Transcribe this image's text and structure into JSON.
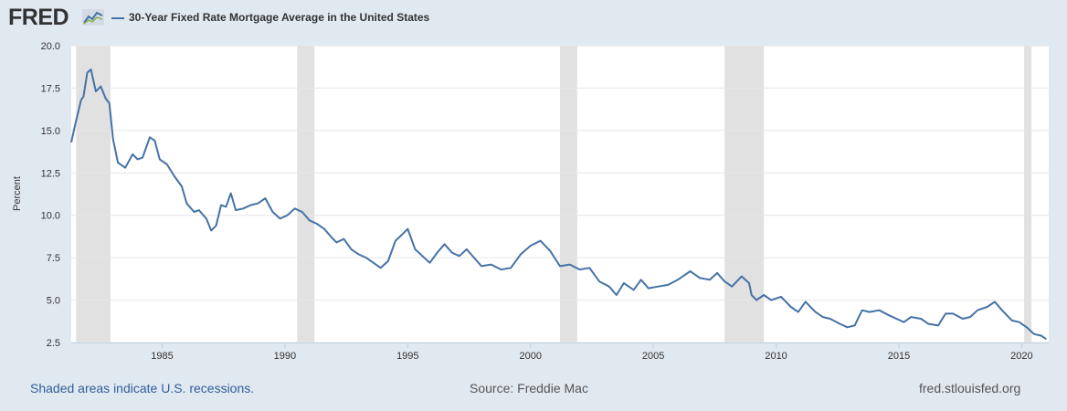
{
  "header": {
    "logo_text": "FRED",
    "logo_icon": "line-chart-icon"
  },
  "colors": {
    "background": "#e1e9f0",
    "plot_background": "#ffffff",
    "series": "#4572a7",
    "recession": "#e1e1e1",
    "grid": "#e6e6e6",
    "link": "#2f5d9b"
  },
  "chart_data": {
    "type": "line",
    "title": "30-Year Fixed Rate Mortgage Average in the United States",
    "xlabel": "",
    "ylabel": "Percent",
    "xlim": [
      1981.3,
      2021.1
    ],
    "ylim": [
      2.5,
      20.0
    ],
    "yticks": [
      2.5,
      5.0,
      7.5,
      10.0,
      12.5,
      15.0,
      17.5,
      20.0
    ],
    "ytick_labels": [
      "2.5",
      "5.0",
      "7.5",
      "10.0",
      "12.5",
      "15.0",
      "17.5",
      "20.0"
    ],
    "xticks": [
      1985,
      1990,
      1995,
      2000,
      2005,
      2010,
      2015,
      2020
    ],
    "xtick_labels": [
      "1985",
      "1990",
      "1995",
      "2000",
      "2005",
      "2010",
      "2015",
      "2020"
    ],
    "grid": true,
    "legend": "top-left",
    "recessions": [
      {
        "start": 1981.5,
        "end": 1982.9
      },
      {
        "start": 1990.5,
        "end": 1991.2
      },
      {
        "start": 2001.2,
        "end": 2001.9
      },
      {
        "start": 2007.9,
        "end": 2009.5
      },
      {
        "start": 2020.1,
        "end": 2020.4
      }
    ],
    "series": [
      {
        "name": "30-Year Fixed Rate Mortgage Average in the United States",
        "x": [
          1981.3,
          1981.5,
          1981.7,
          1981.8,
          1981.95,
          1982.1,
          1982.3,
          1982.5,
          1982.7,
          1982.85,
          1983.0,
          1983.2,
          1983.5,
          1983.8,
          1984.0,
          1984.2,
          1984.5,
          1984.7,
          1984.9,
          1985.2,
          1985.5,
          1985.8,
          1986.0,
          1986.3,
          1986.5,
          1986.8,
          1987.0,
          1987.2,
          1987.4,
          1987.6,
          1987.8,
          1988.0,
          1988.3,
          1988.6,
          1988.9,
          1989.2,
          1989.5,
          1989.8,
          1990.1,
          1990.4,
          1990.7,
          1991.0,
          1991.3,
          1991.6,
          1991.9,
          1992.1,
          1992.4,
          1992.7,
          1993.0,
          1993.3,
          1993.6,
          1993.9,
          1994.2,
          1994.5,
          1994.8,
          1995.0,
          1995.3,
          1995.6,
          1995.9,
          1996.2,
          1996.5,
          1996.8,
          1997.1,
          1997.4,
          1997.7,
          1998.0,
          1998.4,
          1998.8,
          1999.2,
          1999.6,
          2000.0,
          2000.4,
          2000.8,
          2001.2,
          2001.6,
          2002.0,
          2002.4,
          2002.8,
          2003.2,
          2003.5,
          2003.8,
          2004.2,
          2004.5,
          2004.8,
          2005.2,
          2005.6,
          2006.0,
          2006.5,
          2006.9,
          2007.3,
          2007.6,
          2007.9,
          2008.2,
          2008.6,
          2008.9,
          2009.0,
          2009.2,
          2009.5,
          2009.8,
          2010.2,
          2010.6,
          2010.9,
          2011.2,
          2011.6,
          2011.9,
          2012.2,
          2012.6,
          2012.9,
          2013.2,
          2013.5,
          2013.8,
          2014.2,
          2014.6,
          2014.9,
          2015.2,
          2015.5,
          2015.9,
          2016.2,
          2016.6,
          2016.9,
          2017.2,
          2017.6,
          2017.9,
          2018.2,
          2018.6,
          2018.9,
          2019.2,
          2019.6,
          2019.9,
          2020.2,
          2020.5,
          2020.8,
          2021.0
        ],
        "values": [
          14.3,
          15.6,
          16.8,
          17.0,
          18.4,
          18.6,
          17.3,
          17.6,
          16.9,
          16.6,
          14.5,
          13.1,
          12.8,
          13.6,
          13.3,
          13.4,
          14.6,
          14.4,
          13.3,
          13.0,
          12.3,
          11.7,
          10.7,
          10.2,
          10.3,
          9.8,
          9.1,
          9.4,
          10.6,
          10.5,
          11.3,
          10.3,
          10.4,
          10.6,
          10.7,
          11.0,
          10.2,
          9.8,
          10.0,
          10.4,
          10.2,
          9.7,
          9.5,
          9.2,
          8.7,
          8.4,
          8.6,
          8.0,
          7.7,
          7.5,
          7.2,
          6.9,
          7.3,
          8.5,
          8.9,
          9.2,
          8.0,
          7.6,
          7.2,
          7.8,
          8.3,
          7.8,
          7.6,
          8.0,
          7.5,
          7.0,
          7.1,
          6.8,
          6.9,
          7.7,
          8.2,
          8.5,
          7.9,
          7.0,
          7.1,
          6.8,
          6.9,
          6.1,
          5.8,
          5.3,
          6.0,
          5.6,
          6.2,
          5.7,
          5.8,
          5.9,
          6.2,
          6.7,
          6.3,
          6.2,
          6.6,
          6.1,
          5.8,
          6.4,
          6.0,
          5.3,
          5.0,
          5.3,
          5.0,
          5.2,
          4.6,
          4.3,
          4.9,
          4.3,
          4.0,
          3.9,
          3.6,
          3.4,
          3.5,
          4.4,
          4.3,
          4.4,
          4.1,
          3.9,
          3.7,
          4.0,
          3.9,
          3.6,
          3.5,
          4.2,
          4.2,
          3.9,
          4.0,
          4.4,
          4.6,
          4.9,
          4.4,
          3.8,
          3.7,
          3.4,
          3.0,
          2.9,
          2.7
        ]
      }
    ]
  },
  "footer": {
    "recession_note": "Shaded areas indicate U.S. recessions.",
    "source": "Source: Freddie Mac",
    "url": "fred.stlouisfed.org"
  }
}
